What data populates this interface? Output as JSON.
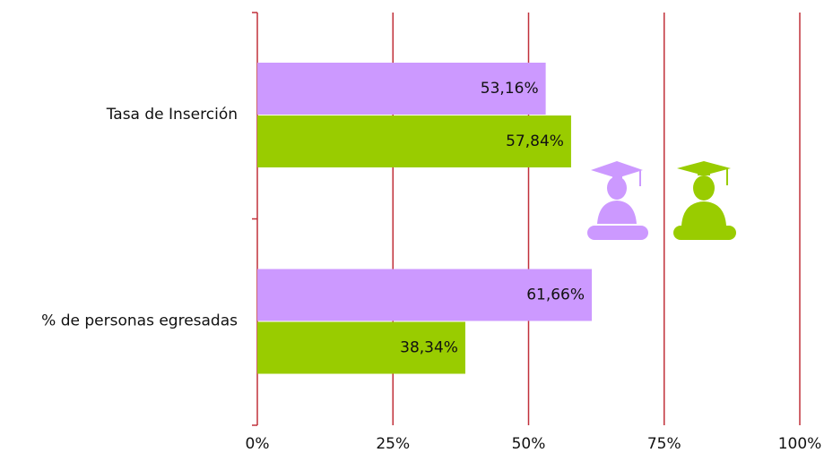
{
  "chart_data": {
    "type": "bar",
    "orientation": "horizontal",
    "categories": [
      "Tasa de Inserción",
      "% de personas egresadas"
    ],
    "series": [
      {
        "color": "#cc99ff",
        "values": [
          53.16,
          61.66
        ],
        "value_labels": [
          "53,16%",
          "61,66%"
        ]
      },
      {
        "color": "#99cc00",
        "values": [
          57.84,
          38.34
        ],
        "value_labels": [
          "57,84%",
          "38,34%"
        ]
      }
    ],
    "xlim": [
      0,
      100
    ],
    "xticks": [
      {
        "value": 0,
        "label": "0%"
      },
      {
        "value": 25,
        "label": "25%"
      },
      {
        "value": 50,
        "label": "50%"
      },
      {
        "value": 75,
        "label": "75%"
      },
      {
        "value": 100,
        "label": "100%"
      }
    ],
    "grid": true,
    "grid_color": "#c0303a"
  }
}
